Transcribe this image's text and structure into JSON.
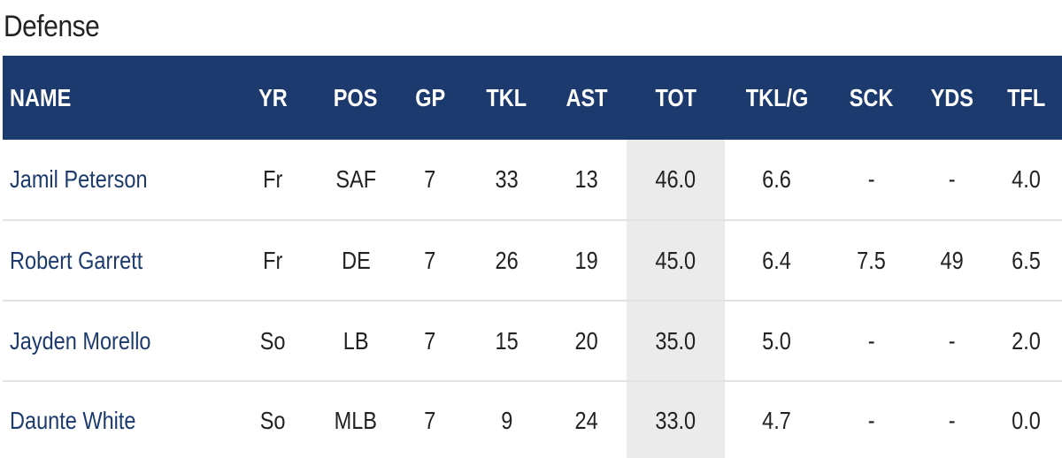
{
  "section": {
    "title": "Defense"
  },
  "table": {
    "columns": [
      "NAME",
      "YR",
      "POS",
      "GP",
      "TKL",
      "AST",
      "TOT",
      "TKL/G",
      "SCK",
      "YDS",
      "TFL"
    ],
    "rows": [
      {
        "name": "Jamil Peterson",
        "yr": "Fr",
        "pos": "SAF",
        "gp": "7",
        "tkl": "33",
        "ast": "13",
        "tot": "46.0",
        "tklg": "6.6",
        "sck": "-",
        "yds": "-",
        "tfl": "4.0"
      },
      {
        "name": "Robert Garrett",
        "yr": "Fr",
        "pos": "DE",
        "gp": "7",
        "tkl": "26",
        "ast": "19",
        "tot": "45.0",
        "tklg": "6.4",
        "sck": "7.5",
        "yds": "49",
        "tfl": "6.5"
      },
      {
        "name": "Jayden Morello",
        "yr": "So",
        "pos": "LB",
        "gp": "7",
        "tkl": "15",
        "ast": "20",
        "tot": "35.0",
        "tklg": "5.0",
        "sck": "-",
        "yds": "-",
        "tfl": "2.0"
      },
      {
        "name": "Daunte White",
        "yr": "So",
        "pos": "MLB",
        "gp": "7",
        "tkl": "9",
        "ast": "24",
        "tot": "33.0",
        "tklg": "4.7",
        "sck": "-",
        "yds": "-",
        "tfl": "0.0"
      }
    ]
  },
  "colors": {
    "header_bg": "#1c3a6e",
    "name_link": "#1c3a6e",
    "highlight_column_bg": "#ebebeb"
  }
}
